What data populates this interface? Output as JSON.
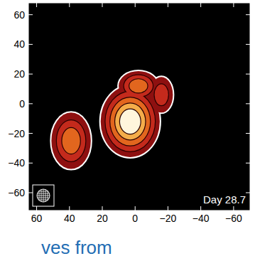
{
  "chart_data": {
    "type": "image",
    "annotations": [
      "Day 28.7",
      "ves from"
    ],
    "xlim": [
      65,
      -70
    ],
    "ylim": [
      -72,
      68
    ],
    "xticks": [
      60,
      40,
      20,
      0,
      {
        "value": -20,
        "label": "−20"
      },
      {
        "value": -40,
        "label": "−40"
      },
      {
        "value": -60,
        "label": "−60"
      }
    ],
    "yticks": [
      60,
      40,
      20,
      0,
      {
        "value": -20,
        "label": "−20"
      },
      {
        "value": -40,
        "label": "−40"
      },
      {
        "value": -60,
        "label": "−60"
      }
    ],
    "components": [
      {
        "x": 3,
        "y": -12,
        "rx": 18,
        "ry": 24,
        "levels": 5
      },
      {
        "x": -2,
        "y": 12,
        "rx": 12,
        "ry": 10,
        "levels": 3
      },
      {
        "x": -16,
        "y": 6,
        "rx": 7,
        "ry": 12,
        "levels": 2
      },
      {
        "x": 39,
        "y": -25,
        "rx": 12,
        "ry": 19,
        "levels": 3
      }
    ]
  }
}
